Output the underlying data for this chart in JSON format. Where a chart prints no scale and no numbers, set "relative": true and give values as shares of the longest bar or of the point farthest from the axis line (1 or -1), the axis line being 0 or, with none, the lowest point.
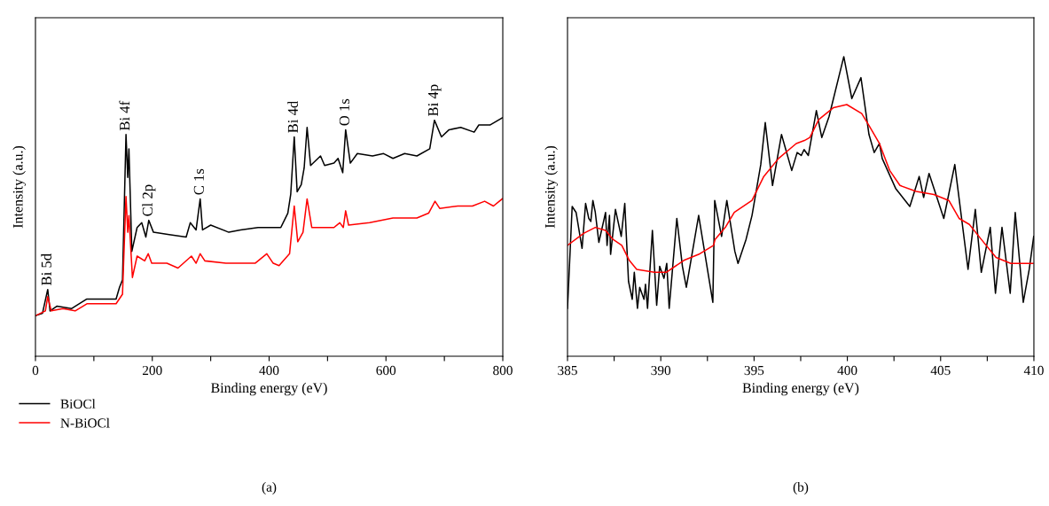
{
  "chart_data": [
    {
      "type": "line",
      "relative": true,
      "xlabel": "Binding energy (eV)",
      "ylabel": "Intensity (a.u.)",
      "xlim": [
        0,
        800
      ],
      "xticks": [
        0,
        {
          "value": 100,
          "label": null
        },
        200,
        {
          "value": 300,
          "label": null
        },
        400,
        {
          "value": 500,
          "label": null
        },
        600,
        {
          "value": 700,
          "label": null
        },
        800
      ],
      "tick_labels": "x",
      "legend": "bottom left",
      "grid": false,
      "series": [
        {
          "name": "BiOCl",
          "color": "#000000",
          "x": [
            0,
            12,
            21,
            25,
            37,
            62,
            88,
            118,
            138,
            144,
            149,
            155,
            158,
            160,
            165,
            174,
            182,
            189,
            194,
            202,
            229,
            258,
            265,
            275,
            282,
            286,
            300,
            331,
            351,
            381,
            395,
            420,
            432,
            437,
            443,
            448,
            455,
            460,
            465,
            471,
            488,
            495,
            511,
            518,
            526,
            531,
            539,
            551,
            577,
            596,
            612,
            632,
            653,
            675,
            683,
            695,
            708,
            728,
            751,
            759,
            778,
            799
          ],
          "values": [
            0.17,
            0.18,
            0.28,
            0.19,
            0.21,
            0.2,
            0.24,
            0.24,
            0.24,
            0.29,
            0.32,
            0.93,
            0.75,
            0.87,
            0.44,
            0.54,
            0.56,
            0.5,
            0.57,
            0.52,
            0.51,
            0.5,
            0.56,
            0.53,
            0.66,
            0.53,
            0.55,
            0.52,
            0.53,
            0.54,
            0.54,
            0.54,
            0.6,
            0.68,
            0.92,
            0.69,
            0.72,
            0.79,
            0.96,
            0.8,
            0.84,
            0.8,
            0.81,
            0.83,
            0.77,
            0.95,
            0.81,
            0.85,
            0.84,
            0.85,
            0.83,
            0.85,
            0.84,
            0.87,
            0.99,
            0.92,
            0.95,
            0.96,
            0.94,
            0.97,
            0.97,
            1.0
          ]
        },
        {
          "name": "N-BiOCl",
          "color": "#ff0000",
          "x": [
            0,
            17,
            21,
            27,
            47,
            68,
            88,
            138,
            149,
            155,
            158,
            160,
            166,
            174,
            187,
            193,
            199,
            225,
            244,
            267,
            275,
            282,
            290,
            326,
            376,
            396,
            407,
            417,
            435,
            443,
            449,
            458,
            465,
            473,
            496,
            511,
            521,
            527,
            531,
            536,
            572,
            612,
            653,
            673,
            684,
            692,
            723,
            748,
            769,
            784,
            799
          ],
          "values": [
            0.17,
            0.19,
            0.25,
            0.19,
            0.2,
            0.19,
            0.22,
            0.22,
            0.26,
            0.67,
            0.52,
            0.59,
            0.33,
            0.42,
            0.4,
            0.43,
            0.39,
            0.39,
            0.37,
            0.42,
            0.39,
            0.43,
            0.4,
            0.39,
            0.39,
            0.43,
            0.39,
            0.38,
            0.43,
            0.63,
            0.48,
            0.52,
            0.66,
            0.54,
            0.54,
            0.54,
            0.56,
            0.54,
            0.61,
            0.55,
            0.56,
            0.58,
            0.58,
            0.6,
            0.65,
            0.62,
            0.63,
            0.63,
            0.65,
            0.63,
            0.66
          ]
        }
      ],
      "annotations": [
        {
          "text": "Bi 5d",
          "x": 21,
          "y": 0.28
        },
        {
          "text": "Bi 4f",
          "x": 155,
          "y": 0.93
        },
        {
          "text": "Cl 2p",
          "x": 194,
          "y": 0.57
        },
        {
          "text": "C 1s",
          "x": 282,
          "y": 0.66
        },
        {
          "text": "Bi 4d",
          "x": 443,
          "y": 0.92
        },
        {
          "text": "O 1s",
          "x": 531,
          "y": 0.95
        },
        {
          "text": "Bi 4p",
          "x": 683,
          "y": 0.99
        },
        "(a)"
      ]
    },
    {
      "type": "line",
      "relative": true,
      "xlabel": "Binding energy (eV)",
      "ylabel": "Intensity (a.u.)",
      "xlim": [
        385,
        410
      ],
      "xticks": [
        385,
        {
          "value": 387.5,
          "label": null
        },
        390,
        {
          "value": 392.5,
          "label": null
        },
        395,
        {
          "value": 397.5,
          "label": null
        },
        400,
        {
          "value": 402.5,
          "label": null
        },
        405,
        {
          "value": 407.5,
          "label": null
        },
        410
      ],
      "tick_labels": "x",
      "grid": false,
      "series": [
        {
          "color": "#000000",
          "x": [
            385.0,
            385.25,
            385.46,
            385.78,
            385.97,
            386.14,
            386.25,
            386.36,
            386.49,
            386.68,
            387.04,
            387.12,
            387.25,
            387.31,
            387.57,
            387.88,
            388.07,
            388.27,
            388.47,
            388.58,
            388.75,
            388.87,
            389.1,
            389.18,
            389.29,
            389.55,
            389.78,
            389.94,
            390.17,
            390.32,
            390.45,
            390.86,
            391.16,
            391.37,
            392.03,
            392.79,
            392.89,
            393.26,
            393.54,
            393.97,
            394.14,
            394.57,
            394.89,
            395.36,
            395.6,
            395.99,
            396.47,
            397.02,
            397.31,
            397.53,
            397.68,
            397.91,
            398.34,
            398.63,
            399.02,
            399.81,
            400.24,
            400.73,
            401.16,
            401.44,
            401.72,
            401.87,
            402.59,
            403.35,
            403.85,
            404.09,
            404.38,
            405.17,
            405.76,
            406.47,
            406.86,
            407.18,
            407.66,
            407.94,
            408.29,
            408.73,
            409.0,
            409.43,
            409.75,
            409.99
          ],
          "values": [
            0.16,
            0.5,
            0.48,
            0.36,
            0.51,
            0.46,
            0.45,
            0.52,
            0.48,
            0.38,
            0.48,
            0.37,
            0.47,
            0.34,
            0.49,
            0.4,
            0.51,
            0.25,
            0.19,
            0.28,
            0.16,
            0.23,
            0.19,
            0.24,
            0.16,
            0.42,
            0.17,
            0.3,
            0.26,
            0.31,
            0.16,
            0.46,
            0.3,
            0.23,
            0.47,
            0.18,
            0.52,
            0.4,
            0.52,
            0.35,
            0.31,
            0.39,
            0.47,
            0.64,
            0.78,
            0.57,
            0.74,
            0.62,
            0.68,
            0.67,
            0.69,
            0.67,
            0.82,
            0.73,
            0.8,
            1.0,
            0.86,
            0.93,
            0.74,
            0.68,
            0.71,
            0.66,
            0.56,
            0.5,
            0.6,
            0.53,
            0.61,
            0.46,
            0.64,
            0.29,
            0.49,
            0.28,
            0.43,
            0.21,
            0.43,
            0.21,
            0.48,
            0.18,
            0.29,
            0.4
          ]
        },
        {
          "color": "#ff0000",
          "x": [
            385.0,
            385.86,
            386.49,
            387.04,
            387.44,
            387.91,
            388.31,
            388.71,
            389.66,
            390.29,
            391.24,
            392.03,
            392.83,
            392.91,
            393.46,
            393.94,
            394.89,
            395.52,
            396.31,
            397.26,
            397.7,
            397.99,
            398.47,
            399.26,
            399.97,
            400.77,
            401.16,
            401.72,
            402.27,
            402.82,
            403.69,
            404.64,
            405.44,
            405.99,
            406.54,
            407.18,
            407.97,
            408.76,
            409.95
          ],
          "values": [
            0.37,
            0.41,
            0.43,
            0.42,
            0.39,
            0.37,
            0.32,
            0.29,
            0.28,
            0.28,
            0.32,
            0.34,
            0.37,
            0.39,
            0.43,
            0.48,
            0.52,
            0.6,
            0.66,
            0.71,
            0.72,
            0.73,
            0.79,
            0.83,
            0.84,
            0.81,
            0.77,
            0.71,
            0.62,
            0.57,
            0.55,
            0.54,
            0.52,
            0.46,
            0.44,
            0.39,
            0.33,
            0.31,
            0.31
          ]
        }
      ],
      "annotations": [
        "(b)"
      ]
    }
  ]
}
